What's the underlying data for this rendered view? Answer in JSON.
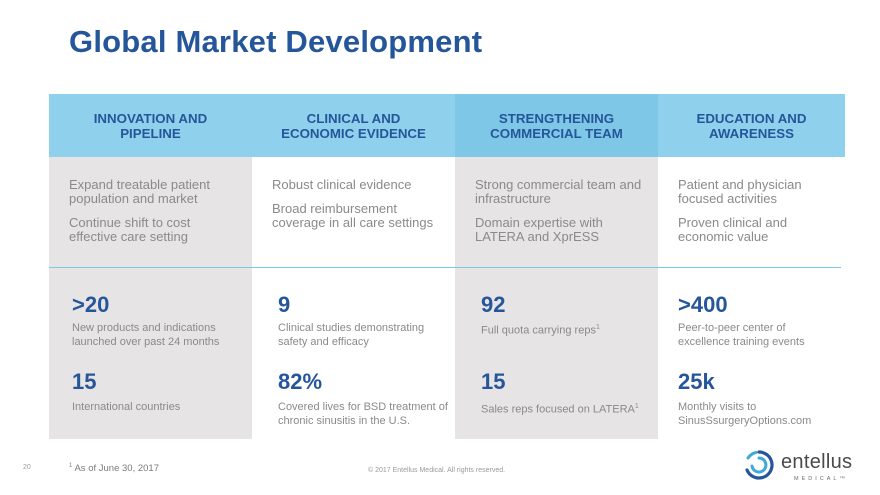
{
  "title": "Global Market Development",
  "colors": {
    "accent": "#26569a",
    "header_bg": "#8fd0ec",
    "panel_gray": "#e6e4e4"
  },
  "columns": [
    {
      "header": "INNOVATION AND\nPIPELINE",
      "desc1": "Expand treatable patient population and market",
      "desc2": "Continue shift to cost effective care setting",
      "stat1_num": ">20",
      "stat1_label": "New products and indications launched over past 24 months",
      "stat2_num": "15",
      "stat2_label": "International countries"
    },
    {
      "header": "CLINICAL AND\nECONOMIC EVIDENCE",
      "desc1": "Robust clinical evidence",
      "desc2": "Broad reimbursement coverage in all care settings",
      "stat1_num": "9",
      "stat1_label": "Clinical studies demonstrating safety and efficacy",
      "stat2_num": "82%",
      "stat2_label": "Covered lives for BSD treatment of chronic sinusitis in the U.S."
    },
    {
      "header": "STRENGTHENING\nCOMMERCIAL TEAM",
      "desc1": "Strong commercial team and infrastructure",
      "desc2": "Domain expertise with LATERA and XprESS",
      "stat1_num": "92",
      "stat1_label": "Full quota carrying reps",
      "stat1_sup": "1",
      "stat2_num": "15",
      "stat2_label": "Sales reps focused on LATERA",
      "stat2_sup": "1"
    },
    {
      "header": "EDUCATION AND\nAWARENESS",
      "desc1": "Patient and physician focused activities",
      "desc2": "Proven clinical and economic value",
      "stat1_num": ">400",
      "stat1_label": "Peer-to-peer center of excellence training events",
      "stat2_num": "25k",
      "stat2_label": "Monthly visits to SinusSsurgeryOptions.com"
    }
  ],
  "footer": {
    "page_number": "20",
    "footnote_marker": "1",
    "footnote": "As of June 30, 2017",
    "copyright": "© 2017 Entellus Medical. All rights reserved.",
    "logo_name": "entellus",
    "logo_sub": "MEDICAL™"
  }
}
